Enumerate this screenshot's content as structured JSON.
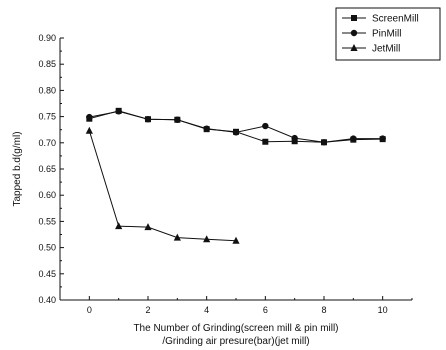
{
  "chart_data": {
    "type": "line",
    "title": "",
    "xlabel": "The Number of Grinding(screen mill & pin mill)",
    "xlabel_line2": "/Grinding air presure(bar)(jet mill)",
    "ylabel": "Tapped b.d(g/ml)",
    "xlim": [
      -1,
      11
    ],
    "ylim": [
      0.4,
      0.9
    ],
    "x_ticks": [
      "0",
      "2",
      "4",
      "6",
      "8",
      "10"
    ],
    "y_ticks": [
      "0.40",
      "0.45",
      "0.50",
      "0.55",
      "0.60",
      "0.65",
      "0.70",
      "0.75",
      "0.80",
      "0.85",
      "0.90"
    ],
    "grid": false,
    "legend_position": "top-right",
    "series": [
      {
        "name": "ScreenMill",
        "marker": "square",
        "x": [
          0,
          1,
          2,
          3,
          4,
          5,
          6,
          7,
          8,
          9,
          10
        ],
        "y": [
          0.746,
          0.761,
          0.745,
          0.744,
          0.726,
          0.721,
          0.702,
          0.703,
          0.701,
          0.706,
          0.707
        ]
      },
      {
        "name": "PinMill",
        "marker": "circle",
        "x": [
          0,
          1,
          2,
          3,
          4,
          5,
          6,
          7,
          8,
          9,
          10
        ],
        "y": [
          0.749,
          0.76,
          0.745,
          0.744,
          0.727,
          0.72,
          0.732,
          0.709,
          0.701,
          0.708,
          0.708
        ]
      },
      {
        "name": "JetMill",
        "marker": "triangle",
        "x": [
          0,
          1,
          2,
          3,
          4,
          5
        ],
        "y": [
          0.723,
          0.541,
          0.539,
          0.519,
          0.516,
          0.513
        ]
      }
    ]
  }
}
